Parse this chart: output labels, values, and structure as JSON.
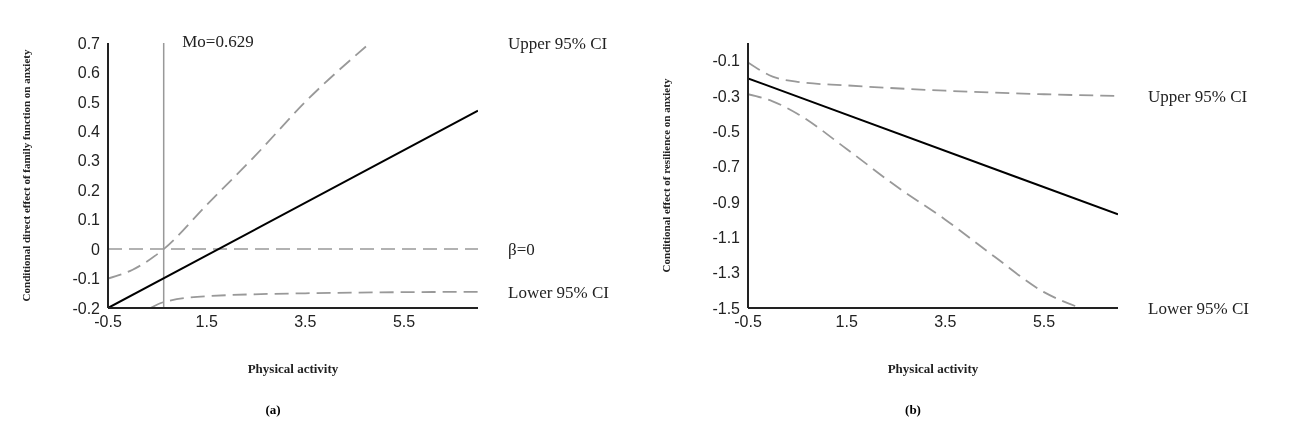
{
  "chart_data": [
    {
      "type": "line",
      "xlabel": "Physical activity",
      "ylabel": "Conditional direct effect of family function on anxiety",
      "xlim": [
        -0.5,
        7
      ],
      "xticks": [
        -0.5,
        1.5,
        3.5,
        5.5
      ],
      "ylim": [
        -0.2,
        0.7
      ],
      "yticks": [
        -0.2,
        -0.1,
        0,
        0.1,
        0.2,
        0.3,
        0.4,
        0.5,
        0.6,
        0.7
      ],
      "marker": "none",
      "annotations": [
        "(a)"
      ],
      "ref_lines": [
        {
          "axis": "x",
          "value": 0.629,
          "label": "Mo=0.629",
          "color": "#999999",
          "line_style": "solid"
        },
        {
          "axis": "y",
          "value": 0,
          "label": "β=0",
          "color": "#999999",
          "line_style": "dashed"
        }
      ],
      "series": [
        {
          "color": "#000000",
          "line_style": "solid",
          "x": [
            -0.5,
            7
          ],
          "values": [
            -0.2,
            0.47
          ]
        },
        {
          "name": "Upper 95% CI",
          "color": "#999999",
          "line_style": "dashed",
          "x": [
            -0.5,
            0,
            0.629,
            1.5,
            2.5,
            3.5,
            4.81
          ],
          "values": [
            -0.1,
            -0.07,
            0,
            0.15,
            0.32,
            0.5,
            0.7
          ]
        },
        {
          "name": "Lower 95% CI",
          "color": "#999999",
          "line_style": "dashed",
          "x": [
            0.36,
            0.629,
            1.5,
            3.5,
            7
          ],
          "values": [
            -0.2,
            -0.18,
            -0.16,
            -0.15,
            -0.145
          ]
        }
      ]
    },
    {
      "type": "line",
      "xlabel": "Physical activity",
      "ylabel": "Conditional effect of resilience on anxiety",
      "xlim": [
        -0.5,
        7
      ],
      "xticks": [
        -0.5,
        1.5,
        3.5,
        5.5
      ],
      "ylim": [
        -1.5,
        0
      ],
      "yticks": [
        -1.5,
        -1.3,
        -1.1,
        -0.9,
        -0.7,
        -0.5,
        -0.3,
        -0.1
      ],
      "marker": "none",
      "annotations": [
        "(b)"
      ],
      "series": [
        {
          "color": "#000000",
          "line_style": "solid",
          "x": [
            -0.5,
            7
          ],
          "values": [
            -0.2,
            -0.97
          ]
        },
        {
          "name": "Upper 95% CI",
          "color": "#999999",
          "line_style": "dashed",
          "x": [
            -0.5,
            0,
            0.5,
            1.5,
            3.5,
            5.5,
            7
          ],
          "values": [
            -0.11,
            -0.19,
            -0.22,
            -0.24,
            -0.27,
            -0.29,
            -0.3
          ]
        },
        {
          "name": "Lower 95% CI",
          "color": "#999999",
          "line_style": "dashed",
          "x": [
            -0.5,
            0,
            0.5,
            1.5,
            2.5,
            3.5,
            4.5,
            5.5,
            6.24
          ],
          "values": [
            -0.29,
            -0.33,
            -0.4,
            -0.6,
            -0.81,
            -1.0,
            -1.21,
            -1.41,
            -1.5
          ]
        }
      ]
    }
  ]
}
